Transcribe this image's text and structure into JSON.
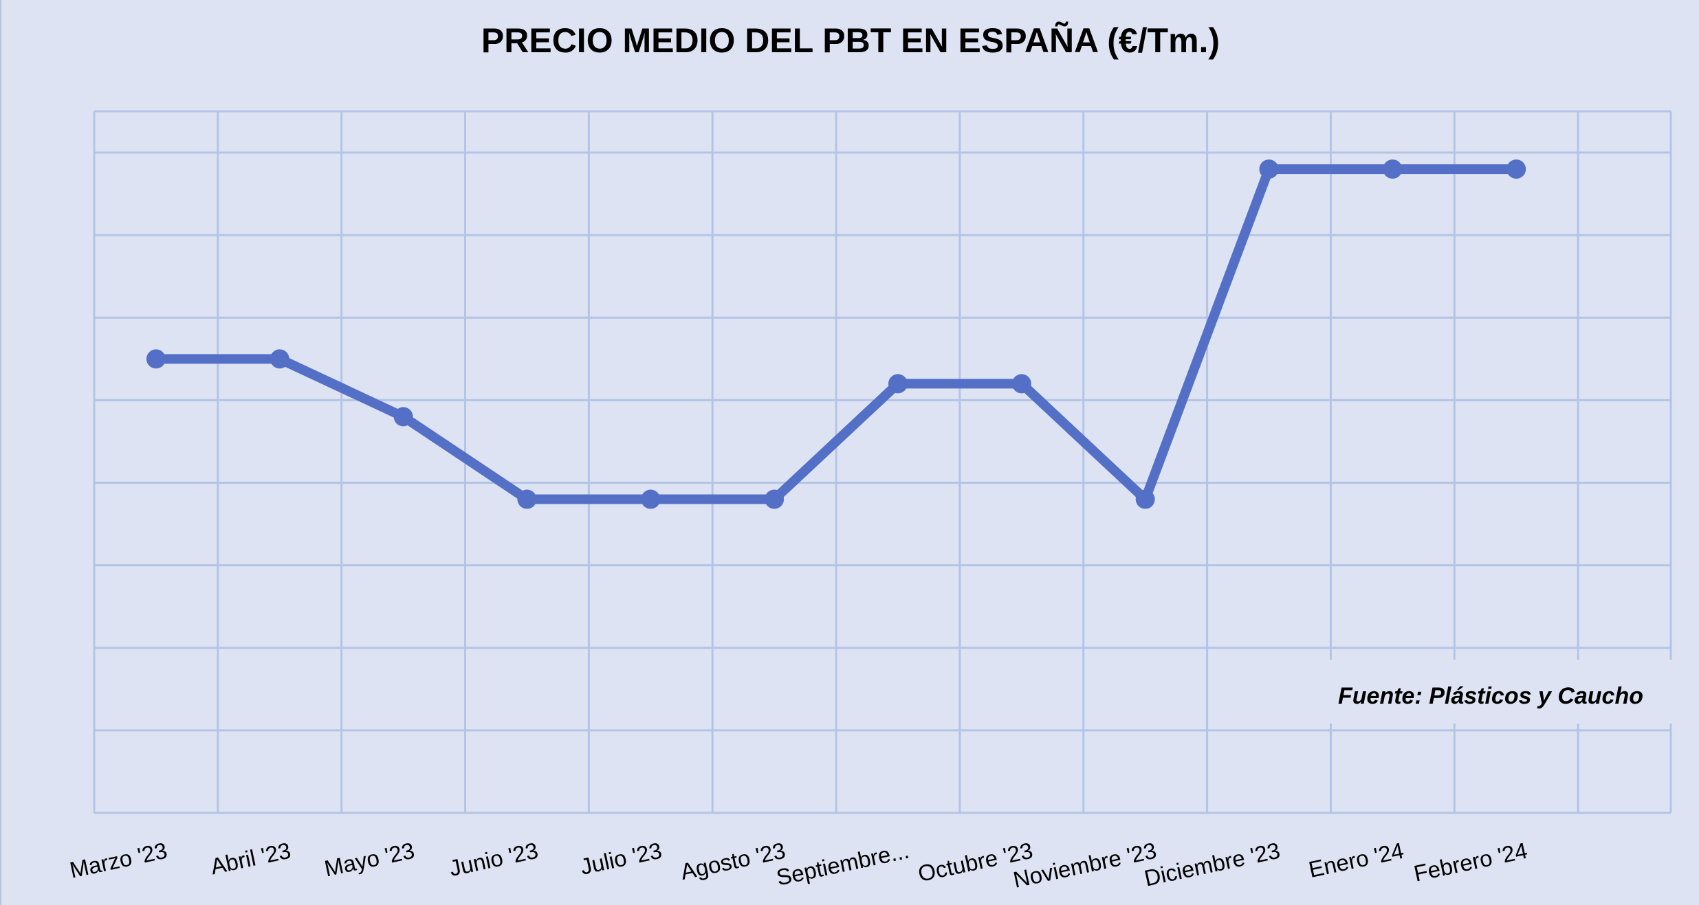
{
  "colors": {
    "background": "#dde3f2",
    "grid": "#b4c4e6",
    "line": "#5470c6",
    "text": "#000000"
  },
  "chart_data": {
    "type": "line",
    "title": "PRECIO MEDIO DEL PBT EN ESPAÑA (€/Tm.)",
    "xlabel": "",
    "ylabel": "",
    "categories": [
      "Marzo '23",
      "Abril '23",
      "Mayo '23",
      "Junio '23",
      "Julio '23",
      "Agosto '23",
      "Septiembre...",
      "Octubre '23",
      "Noviembre '23",
      "Diciembre '23",
      "Enero '24",
      "Febrero '24"
    ],
    "series": [
      {
        "values": [
          4.5,
          4.5,
          3.8,
          2.8,
          2.8,
          2.8,
          4.2,
          4.2,
          2.8,
          6.8,
          6.8,
          6.8
        ],
        "color": "#5470c6"
      }
    ],
    "ylim": [
      -1,
      7.5
    ],
    "y_gridlines": [
      -1,
      0,
      1,
      2,
      3,
      4,
      5,
      6,
      7,
      7.5
    ],
    "y_tick_labels_shown": false,
    "grid": true,
    "legend": "none",
    "annotation": "Fuente: Plásticos y Caucho"
  }
}
